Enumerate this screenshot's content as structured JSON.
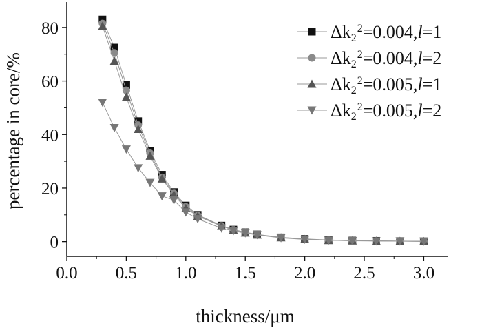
{
  "chart_data": {
    "type": "line",
    "title": "",
    "xlabel": "thickness/μm",
    "ylabel": "percentage in core/%",
    "xlim": [
      0,
      3.2
    ],
    "ylim": [
      -5.5,
      89.5
    ],
    "xticks": [
      "0.0",
      "0.5",
      "1.0",
      "1.5",
      "2.0",
      "2.5",
      "3.0"
    ],
    "yticks": [
      "0",
      "20",
      "40",
      "60",
      "80"
    ],
    "grid": false,
    "legend_position": "top-right",
    "x": [
      0.3,
      0.4,
      0.5,
      0.6,
      0.7,
      0.8,
      0.9,
      1.0,
      1.1,
      1.3,
      1.4,
      1.5,
      1.6,
      1.8,
      2.0,
      2.2,
      2.4,
      2.6,
      2.8,
      3.0
    ],
    "series": [
      {
        "name_prefix": "Δk",
        "sub": "2",
        "sup": "2",
        "name_mid": "=0.004,",
        "name_l": "l",
        "name_end": "=1",
        "marker": "square",
        "color": "#111111",
        "values": [
          83,
          72.5,
          58.5,
          45,
          34,
          25,
          18.5,
          13.5,
          10,
          6,
          4.5,
          3.5,
          2.7,
          1.6,
          1.0,
          0.6,
          0.4,
          0.3,
          0.2,
          0.1
        ]
      },
      {
        "name_prefix": "Δk",
        "sub": "2",
        "sup": "2",
        "name_mid": "=0.004,",
        "name_l": "l",
        "name_end": "=2",
        "marker": "circle",
        "color": "#8a8a8a",
        "values": [
          81.5,
          70.5,
          56.5,
          43.5,
          33,
          24,
          18,
          13,
          9.8,
          5.9,
          4.4,
          3.4,
          2.6,
          1.5,
          0.9,
          0.55,
          0.35,
          0.25,
          0.15,
          0.1
        ]
      },
      {
        "name_prefix": "Δk",
        "sub": "2",
        "sup": "2",
        "name_mid": "=0.005,",
        "name_l": "l",
        "name_end": "=1",
        "marker": "triangle-up",
        "color": "#555555",
        "values": [
          80.5,
          67.5,
          54,
          42,
          32,
          23.5,
          17.5,
          12.5,
          9.5,
          5.8,
          4.3,
          3.3,
          2.5,
          1.5,
          0.9,
          0.5,
          0.35,
          0.25,
          0.15,
          0.1
        ]
      },
      {
        "name_prefix": "Δk",
        "sub": "2",
        "sup": "2",
        "name_mid": "=0.005,",
        "name_l": "l",
        "name_end": "=2",
        "marker": "triangle-down",
        "color": "#777777",
        "values": [
          52,
          42.5,
          34.5,
          27.5,
          22,
          17,
          15.5,
          11,
          8.5,
          5,
          4,
          3.2,
          2.5,
          1.4,
          0.8,
          0.5,
          0.3,
          0.2,
          0.15,
          0.1
        ]
      }
    ]
  }
}
